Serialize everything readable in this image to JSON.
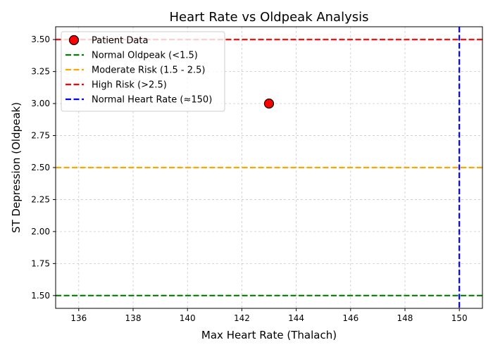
{
  "chart_data": {
    "type": "scatter",
    "title": "Heart Rate vs Oldpeak Analysis",
    "xlabel": "Max Heart Rate (Thalach)",
    "ylabel": "ST Depression (Oldpeak)",
    "xlim": [
      135.15,
      150.85
    ],
    "ylim": [
      1.4,
      3.6
    ],
    "xticks": [
      136,
      138,
      140,
      142,
      144,
      146,
      148,
      150
    ],
    "yticks": [
      1.5,
      1.75,
      2.0,
      2.25,
      2.5,
      2.75,
      3.0,
      3.25,
      3.5
    ],
    "grid": true,
    "legend_position": "top-left",
    "series": [
      {
        "name": "Patient Data",
        "type": "scatter",
        "color": "#ff0000",
        "edge_color": "#000000",
        "points": [
          {
            "x": 143,
            "y": 3.0
          }
        ]
      }
    ],
    "reference_lines": [
      {
        "name": "Normal Oldpeak (<1.5)",
        "orientation": "horizontal",
        "value": 1.5,
        "color": "#008000",
        "style": "dashed"
      },
      {
        "name": "Moderate Risk (1.5 - 2.5)",
        "orientation": "horizontal",
        "value": 2.5,
        "color": "#ffa500",
        "style": "dashed"
      },
      {
        "name": "High Risk (>2.5)",
        "orientation": "horizontal",
        "value": 3.5,
        "color": "#ff0000",
        "style": "dashed"
      },
      {
        "name": "Normal Heart Rate (≈150)",
        "orientation": "vertical",
        "value": 150,
        "color": "#0000ff",
        "style": "dashed"
      }
    ]
  }
}
